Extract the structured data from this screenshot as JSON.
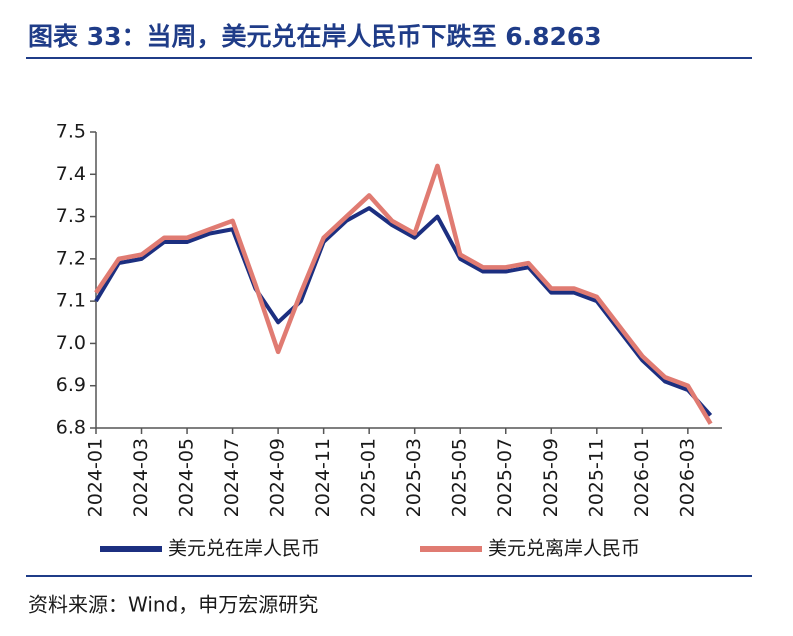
{
  "chart_data": {
    "type": "line",
    "title": "图表 33：当周，美元兑在岸人民币下跌至 6.8263",
    "source": "资料来源：Wind，申万宏源研究",
    "categories": [
      "2024-01",
      null,
      "2024-03",
      null,
      "2024-05",
      null,
      "2024-07",
      null,
      "2024-09",
      null,
      "2024-11",
      null,
      "2025-01",
      null,
      "2025-03",
      null,
      "2025-05",
      null,
      "2025-07",
      null,
      "2025-09",
      null,
      "2025-11",
      null,
      "2026-01",
      null,
      "2026-03",
      null
    ],
    "series": [
      {
        "name": "美元兑在岸人民币",
        "color": "#1c2f80",
        "values": [
          7.1,
          7.19,
          7.2,
          7.24,
          7.24,
          7.26,
          7.27,
          7.13,
          7.05,
          7.1,
          7.24,
          7.29,
          7.32,
          7.28,
          7.25,
          7.3,
          7.2,
          7.17,
          7.17,
          7.18,
          7.12,
          7.12,
          7.1,
          7.03,
          6.96,
          6.91,
          6.89,
          6.83
        ]
      },
      {
        "name": "美元兑离岸人民币",
        "color": "#e07b72",
        "values": [
          7.12,
          7.2,
          7.21,
          7.25,
          7.25,
          7.27,
          7.29,
          7.14,
          6.98,
          7.12,
          7.25,
          7.3,
          7.35,
          7.29,
          7.26,
          7.42,
          7.21,
          7.18,
          7.18,
          7.19,
          7.13,
          7.13,
          7.11,
          7.04,
          6.97,
          6.92,
          6.9,
          6.81
        ]
      }
    ],
    "ylim": [
      6.8,
      7.5
    ],
    "yticks": [
      6.8,
      6.9,
      {
        "value": 7,
        "label": "7.0"
      },
      7.1,
      7.2,
      7.3,
      7.4,
      7.5
    ],
    "grid": false
  }
}
